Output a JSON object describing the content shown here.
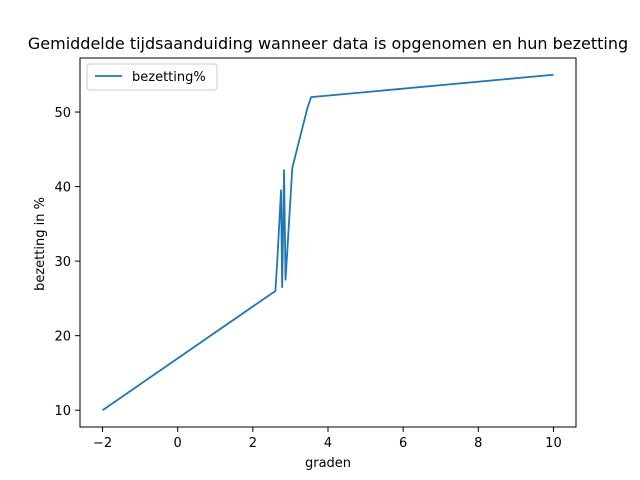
{
  "chart_data": {
    "type": "line",
    "title": "Gemiddelde tijdsaanduiding wanneer data is opgenomen en hun bezetting",
    "xlabel": "graden",
    "ylabel": "bezetting in %",
    "xlim": [
      -2.6,
      10.6
    ],
    "ylim": [
      7.75,
      57.25
    ],
    "xticks": [
      -2,
      0,
      2,
      4,
      6,
      8,
      10
    ],
    "yticks": [
      10,
      20,
      30,
      40,
      50
    ],
    "grid": false,
    "legend_position": "top-left",
    "series": [
      {
        "name": "bezetting%",
        "color": "#1f77b4",
        "points": [
          [
            -2.0,
            10.0
          ],
          [
            2.6,
            26.0
          ],
          [
            2.65,
            30.0
          ],
          [
            2.75,
            39.5
          ],
          [
            2.78,
            26.5
          ],
          [
            2.83,
            42.2
          ],
          [
            2.87,
            27.5
          ],
          [
            3.05,
            42.5
          ],
          [
            3.45,
            50.5
          ],
          [
            3.55,
            52.0
          ],
          [
            10.0,
            55.0
          ]
        ]
      }
    ]
  }
}
